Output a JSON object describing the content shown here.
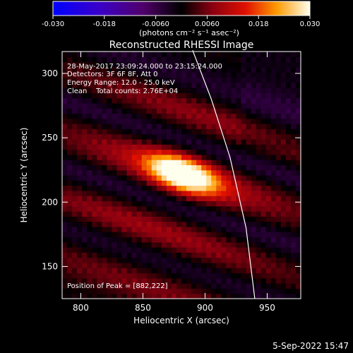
{
  "colorbar": {
    "ticks": [
      "-0.030",
      "-0.018",
      "-0.0060",
      "0.0060",
      "0.018",
      "0.030"
    ],
    "label": "(photons cm⁻² s⁻¹ asec⁻²)",
    "range": [
      -0.03,
      0.03
    ]
  },
  "chart_data": {
    "type": "heatmap",
    "title": "Reconstructed RHESSI Image",
    "xlabel": "Heliocentric X (arcsec)",
    "ylabel": "Heliocentric Y (arcsec)",
    "xlim": [
      785,
      977
    ],
    "ylim": [
      125,
      317
    ],
    "xticks": [
      "800",
      "850",
      "900",
      "950"
    ],
    "yticks": [
      "150",
      "200",
      "250",
      "300"
    ],
    "peak": [
      882,
      222
    ],
    "limb_points": [
      [
        890,
        318
      ],
      [
        905,
        280
      ],
      [
        920,
        235
      ],
      [
        933,
        180
      ],
      [
        940,
        125
      ]
    ],
    "annotations": [
      "28-May-2017 23:09:24.000 to 23:15:24.000",
      "Detectors: 3F 6F 8F, Att 0",
      "Energy Range: 12.0 - 25.0 keV",
      "Clean    Total counts: 2.76E+04",
      "Position of Peak = [882,222]"
    ]
  },
  "footer": {
    "timestamp": "5-Sep-2022 15:47"
  }
}
